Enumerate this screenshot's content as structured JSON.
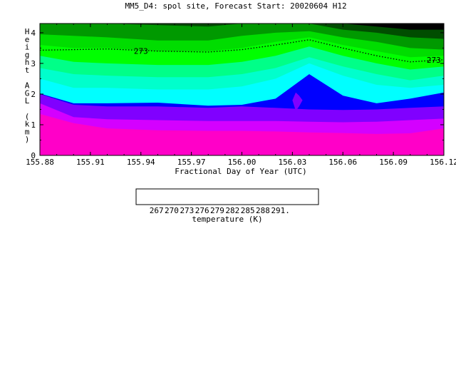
{
  "chart_data": {
    "type": "heatmap",
    "title": "MM5_D4: spol site,  Forecast Start: 20020604 H12",
    "xlabel": "Fractional Day of Year (UTC)",
    "ylabel": "Height AGL (km)",
    "xlim": [
      155.88,
      156.12
    ],
    "ylim": [
      0,
      4.3
    ],
    "x_ticks": [
      "155.88",
      "155.91",
      "155.94",
      "155.97",
      "156.00",
      "156.03",
      "156.06",
      "156.09",
      "156.12"
    ],
    "y_ticks": [
      "0",
      "1",
      "2",
      "3",
      "4"
    ],
    "colorbar": {
      "label": "temperature (K)",
      "tick_labels": [
        "267.",
        "270.",
        "273.",
        "276.",
        "279.",
        "282.",
        "285.",
        "288.",
        "291."
      ],
      "colors": [
        "#000000",
        "#004d00",
        "#009900",
        "#00dd00",
        "#00ff00",
        "#00ff88",
        "#00ffcc",
        "#00ffff",
        "#0000ff",
        "#8000ff",
        "#d400ff",
        "#ff00c8"
      ]
    },
    "contour_label": "273",
    "contour_value": 273,
    "contour_x": [
      155.88,
      155.9,
      155.92,
      155.95,
      155.98,
      156.0,
      156.02,
      156.04,
      156.06,
      156.08,
      156.1,
      156.12
    ],
    "contour_y": [
      3.43,
      3.45,
      3.47,
      3.4,
      3.37,
      3.45,
      3.6,
      3.77,
      3.5,
      3.25,
      3.05,
      3.12
    ],
    "bands": [
      {
        "color": "#ff00c8",
        "upper": [
          1.35,
          1.05,
          0.88,
          0.82,
          0.8,
          0.8,
          0.78,
          0.75,
          0.73,
          0.7,
          0.72,
          0.88
        ]
      },
      {
        "color": "#d400ff",
        "upper": [
          1.7,
          1.25,
          1.18,
          1.15,
          1.12,
          1.12,
          1.12,
          1.1,
          1.08,
          1.1,
          1.15,
          1.2
        ]
      },
      {
        "color": "#8000ff",
        "upper": [
          2.0,
          1.65,
          1.6,
          1.6,
          1.55,
          1.6,
          1.55,
          1.5,
          1.48,
          1.5,
          1.55,
          1.6
        ]
      },
      {
        "color": "#0000ff",
        "upper": [
          2.02,
          1.7,
          1.7,
          1.72,
          1.62,
          1.65,
          1.85,
          2.65,
          1.95,
          1.7,
          1.85,
          2.05
        ]
      },
      {
        "color": "#00ffff",
        "upper": [
          2.5,
          2.2,
          2.2,
          2.15,
          2.15,
          2.25,
          2.5,
          3.0,
          2.6,
          2.3,
          2.2,
          2.3
        ]
      },
      {
        "color": "#00ffcc",
        "upper": [
          2.85,
          2.65,
          2.6,
          2.55,
          2.55,
          2.65,
          2.85,
          3.2,
          2.9,
          2.65,
          2.45,
          2.6
        ]
      },
      {
        "color": "#00ff88",
        "upper": [
          3.25,
          3.05,
          3.0,
          2.95,
          2.95,
          3.05,
          3.25,
          3.55,
          3.25,
          3.0,
          2.8,
          2.9
        ]
      },
      {
        "color": "#00ff00",
        "upper": [
          3.6,
          3.5,
          3.5,
          3.4,
          3.4,
          3.5,
          3.7,
          3.85,
          3.6,
          3.4,
          3.2,
          3.25
        ]
      },
      {
        "color": "#00dd00",
        "upper": [
          3.95,
          3.9,
          3.85,
          3.75,
          3.75,
          3.9,
          4.0,
          4.05,
          3.85,
          3.7,
          3.5,
          3.45
        ]
      },
      {
        "color": "#009900",
        "upper": [
          4.3,
          4.3,
          4.3,
          4.25,
          4.2,
          4.3,
          4.3,
          4.3,
          4.1,
          4.0,
          3.85,
          3.8
        ]
      },
      {
        "color": "#004d00",
        "upper": [
          4.3,
          4.3,
          4.3,
          4.3,
          4.3,
          4.3,
          4.3,
          4.3,
          4.3,
          4.2,
          4.1,
          4.1
        ]
      },
      {
        "color": "#000000",
        "upper": [
          4.3,
          4.3,
          4.3,
          4.3,
          4.3,
          4.3,
          4.3,
          4.3,
          4.3,
          4.3,
          4.3,
          4.3
        ]
      }
    ],
    "pocket": {
      "color": "#8000ff",
      "x": [
        156.032,
        156.034,
        156.036,
        156.038,
        156.036,
        156.034,
        156.032,
        156.03,
        156.032
      ],
      "y": [
        2.05,
        1.95,
        1.8,
        1.45,
        1.8,
        1.6,
        1.45,
        1.8,
        2.05
      ]
    }
  }
}
